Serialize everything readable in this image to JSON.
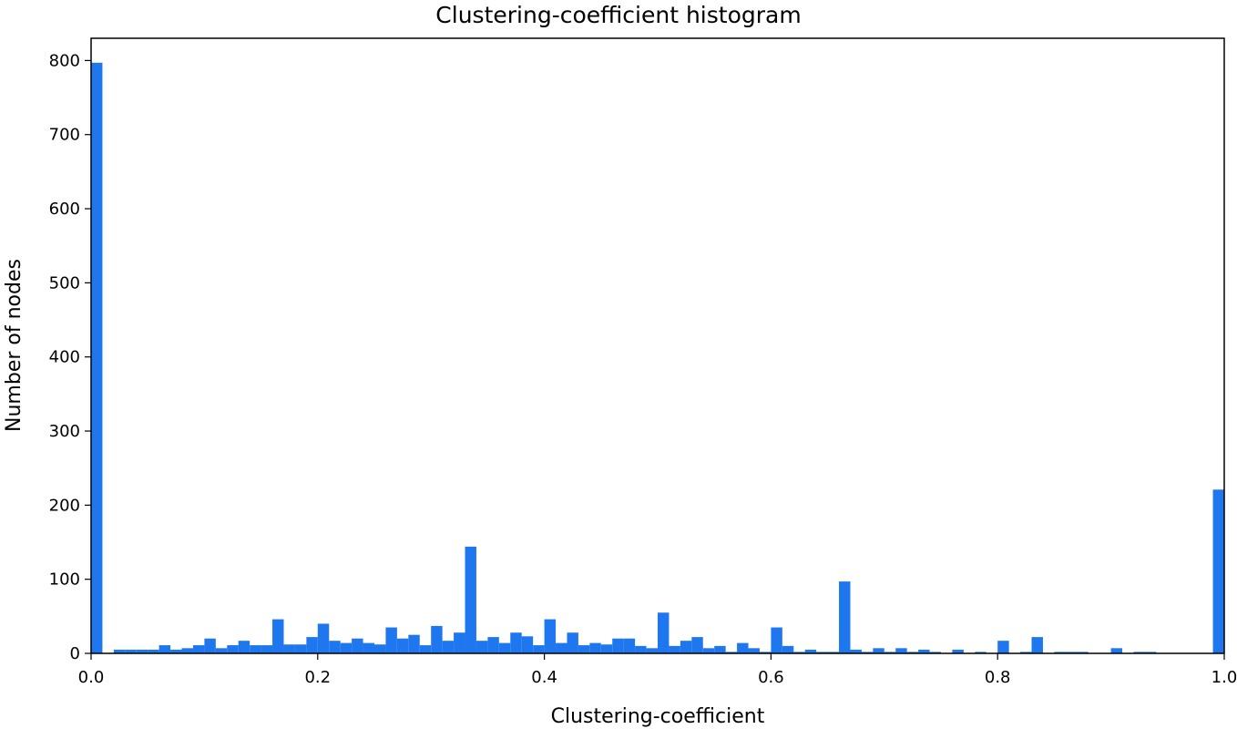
{
  "chart_data": {
    "type": "bar",
    "title": "Clustering-coefficient histogram",
    "xlabel": "Clustering-coefficient",
    "ylabel": "Number of nodes",
    "xlim": [
      0.0,
      1.0
    ],
    "ylim": [
      0,
      830
    ],
    "bin_width": 0.01,
    "x_ticks": [
      "0.0",
      "0.2",
      "0.4",
      "0.6",
      "0.8",
      "1.0"
    ],
    "y_ticks": [
      "0",
      "100",
      "200",
      "300",
      "400",
      "500",
      "600",
      "700",
      "800"
    ],
    "grid": false,
    "legend": "none",
    "bar_color": "#1f77f0",
    "bin_starts": [
      0.0,
      0.01,
      0.02,
      0.03,
      0.04,
      0.05,
      0.06,
      0.07,
      0.08,
      0.09,
      0.1,
      0.11,
      0.12,
      0.13,
      0.14,
      0.15,
      0.16,
      0.17,
      0.18,
      0.19,
      0.2,
      0.21,
      0.22,
      0.23,
      0.24,
      0.25,
      0.26,
      0.27,
      0.28,
      0.29,
      0.3,
      0.31,
      0.32,
      0.33,
      0.34,
      0.35,
      0.36,
      0.37,
      0.38,
      0.39,
      0.4,
      0.41,
      0.42,
      0.43,
      0.44,
      0.45,
      0.46,
      0.47,
      0.48,
      0.49,
      0.5,
      0.51,
      0.52,
      0.53,
      0.54,
      0.55,
      0.56,
      0.57,
      0.58,
      0.59,
      0.6,
      0.61,
      0.62,
      0.63,
      0.64,
      0.65,
      0.66,
      0.67,
      0.68,
      0.69,
      0.7,
      0.71,
      0.72,
      0.73,
      0.74,
      0.75,
      0.76,
      0.77,
      0.78,
      0.79,
      0.8,
      0.81,
      0.82,
      0.83,
      0.84,
      0.85,
      0.86,
      0.87,
      0.88,
      0.89,
      0.9,
      0.91,
      0.92,
      0.93,
      0.94,
      0.95,
      0.96,
      0.97,
      0.98,
      0.99
    ],
    "values": [
      797,
      0,
      5,
      5,
      5,
      5,
      11,
      5,
      7,
      11,
      20,
      7,
      11,
      17,
      11,
      11,
      46,
      12,
      12,
      22,
      40,
      17,
      14,
      20,
      14,
      12,
      35,
      20,
      25,
      11,
      37,
      17,
      28,
      144,
      17,
      22,
      14,
      28,
      23,
      11,
      46,
      14,
      28,
      11,
      14,
      12,
      20,
      20,
      10,
      7,
      55,
      10,
      17,
      22,
      7,
      10,
      2,
      14,
      7,
      2,
      35,
      10,
      2,
      5,
      2,
      2,
      97,
      5,
      2,
      7,
      2,
      7,
      2,
      5,
      2,
      0,
      5,
      0,
      2,
      0,
      17,
      0,
      2,
      22,
      0,
      2,
      2,
      2,
      0,
      0,
      7,
      0,
      2,
      2,
      0,
      0,
      0,
      0,
      0,
      221
    ]
  }
}
